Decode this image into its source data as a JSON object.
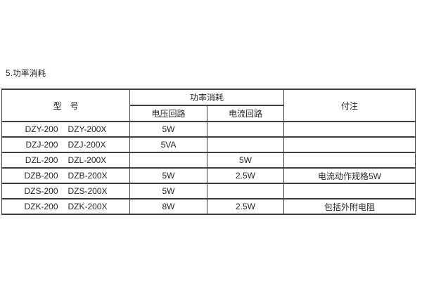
{
  "page": {
    "section_title": "5.功率消耗"
  },
  "table": {
    "header": {
      "model": "型　号",
      "power_group": "功率消耗",
      "voltage_circuit": "电压回路",
      "current_circuit": "电流回路",
      "notes": "付注"
    },
    "rows": [
      {
        "model_a": "DZY-200",
        "model_b": "DZY-200X",
        "voltage": "5W",
        "current": "",
        "note": ""
      },
      {
        "model_a": "DZJ-200",
        "model_b": "DZJ-200X",
        "voltage": "5VA",
        "current": "",
        "note": ""
      },
      {
        "model_a": "DZL-200",
        "model_b": "DZL-200X",
        "voltage": "",
        "current": "5W",
        "note": ""
      },
      {
        "model_a": "DZB-200",
        "model_b": "DZB-200X",
        "voltage": "5W",
        "current": "2.5W",
        "note": "电流动作规格5W"
      },
      {
        "model_a": "DZS-200",
        "model_b": "DZS-200X",
        "voltage": "5W",
        "current": "",
        "note": ""
      },
      {
        "model_a": "DZK-200",
        "model_b": "DZK-200X",
        "voltage": "8W",
        "current": "2.5W",
        "note": "包括外附电阻"
      }
    ]
  }
}
